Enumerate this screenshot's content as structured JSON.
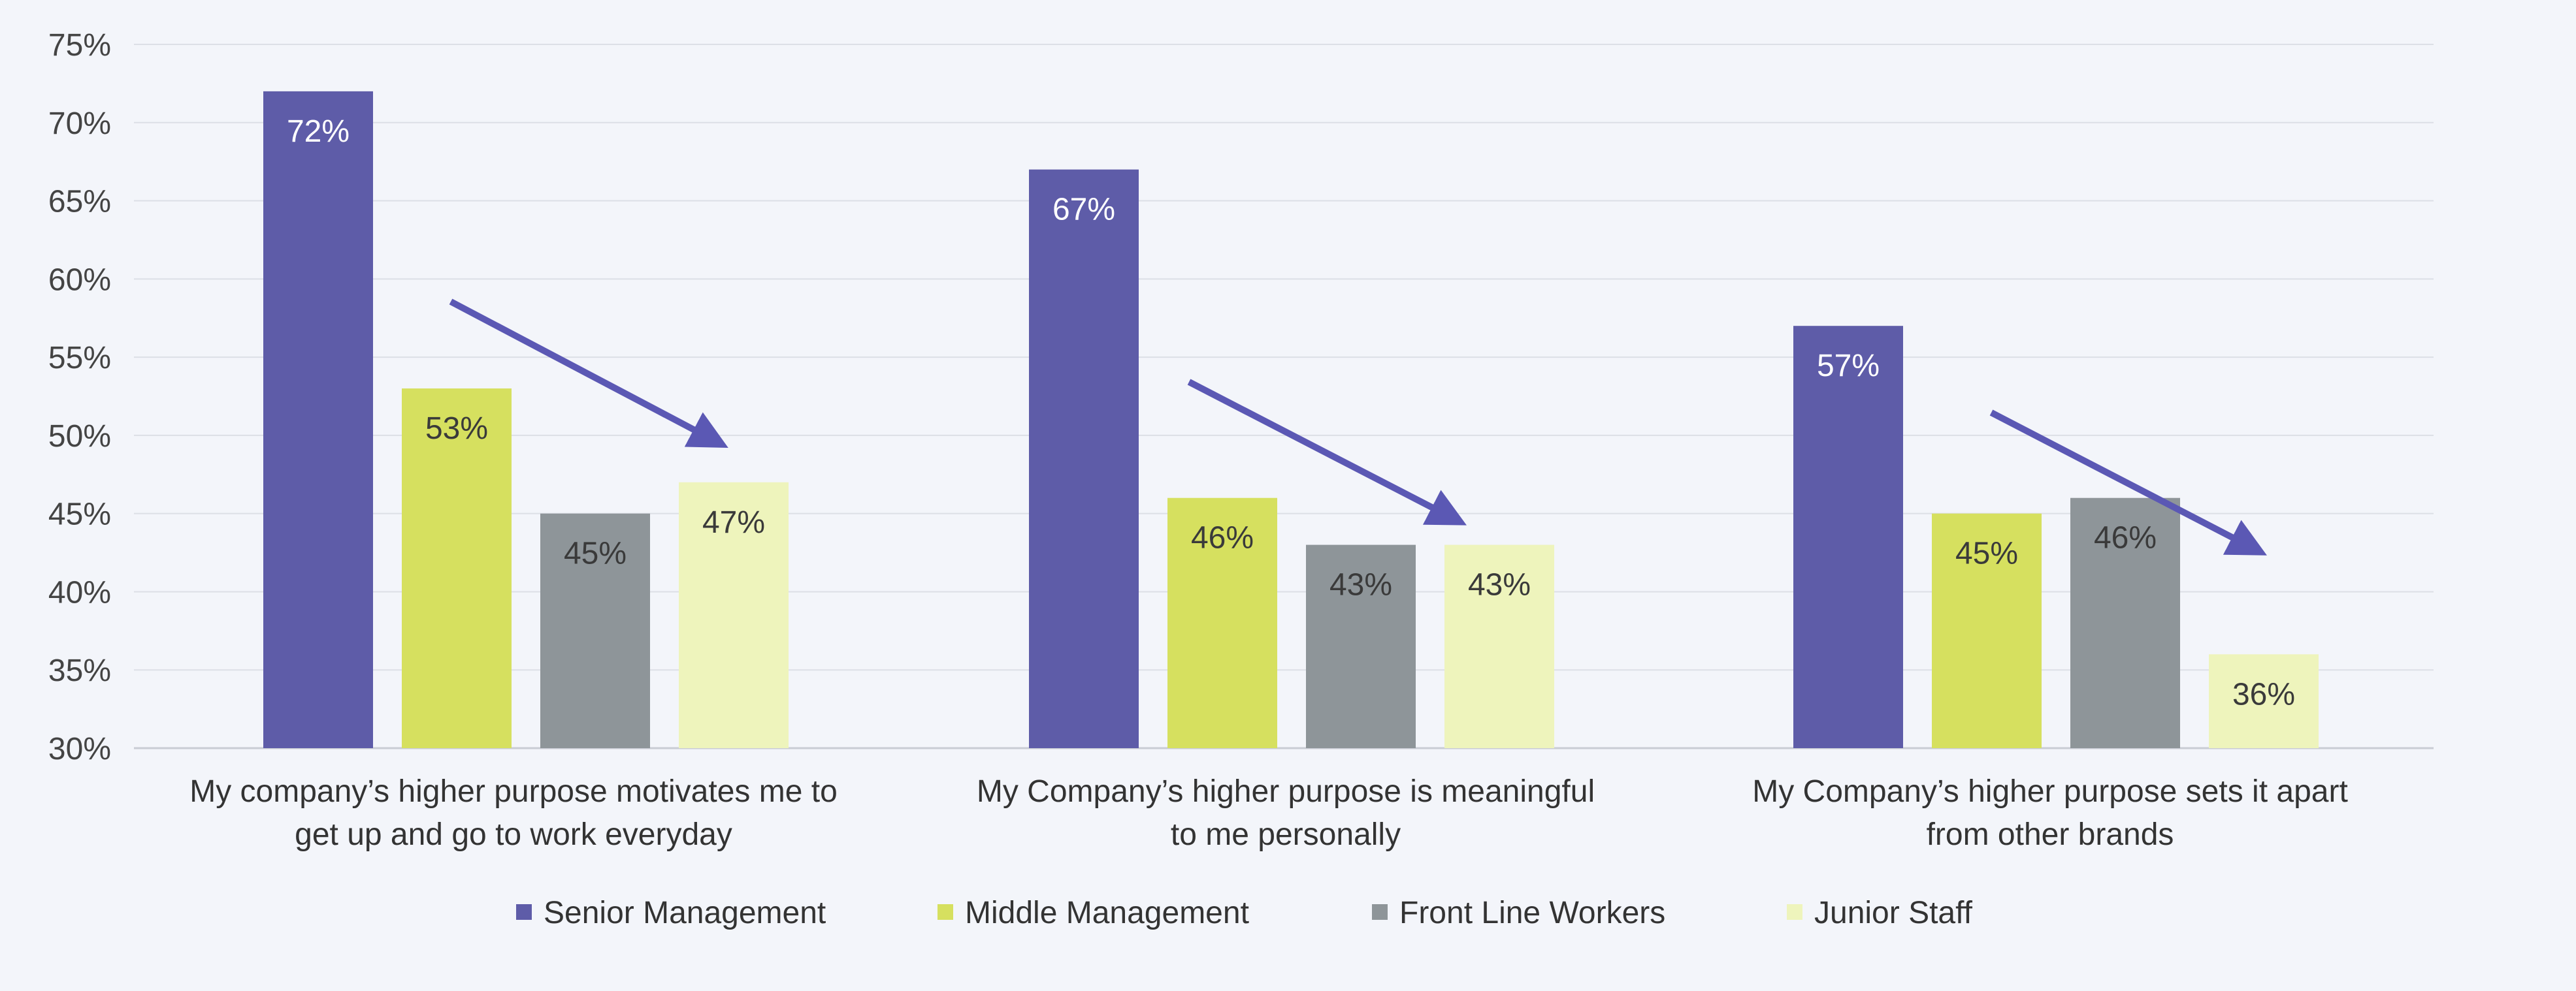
{
  "chart_data": {
    "type": "bar",
    "categories": [
      [
        "My company’s higher purpose motivates me to",
        "get up and go to work everyday"
      ],
      [
        "My Company’s higher purpose is meaningful",
        "to me personally"
      ],
      [
        "My Company’s higher purpose sets it apart",
        "from other brands"
      ]
    ],
    "series": [
      {
        "name": "Senior Management",
        "values": [
          72,
          67,
          57
        ],
        "color": "#5e5ca8",
        "label_color": "#ffffff"
      },
      {
        "name": "Middle Management",
        "values": [
          53,
          46,
          45
        ],
        "color": "#d6e05f",
        "label_color": "#3a3a3a"
      },
      {
        "name": "Front Line Workers",
        "values": [
          45,
          43,
          46
        ],
        "color": "#8e9599",
        "label_color": "#3a3a3a"
      },
      {
        "name": "Junior Staff",
        "values": [
          47,
          43,
          36
        ],
        "color": "#eef4bc",
        "label_color": "#3a3a3a"
      }
    ],
    "data_labels": [
      [
        "72%",
        "53%",
        "45%",
        "47%"
      ],
      [
        "67%",
        "46%",
        "43%",
        "43%"
      ],
      [
        "57%",
        "45%",
        "46%",
        "36%"
      ]
    ],
    "ylim": [
      30,
      75
    ],
    "yticks": [
      30,
      35,
      40,
      45,
      50,
      55,
      60,
      65,
      70,
      75
    ],
    "ytick_labels": [
      "30%",
      "35%",
      "40%",
      "45%",
      "50%",
      "55%",
      "60%",
      "65%",
      "70%",
      "75%"
    ],
    "grid": true,
    "legend_position": "bottom-center",
    "annotations": "downward trend arrow in each group",
    "arrow_color": "#5b58b4",
    "grid_color": "#dcdfe6",
    "axis_color": "#c9ccd4"
  }
}
